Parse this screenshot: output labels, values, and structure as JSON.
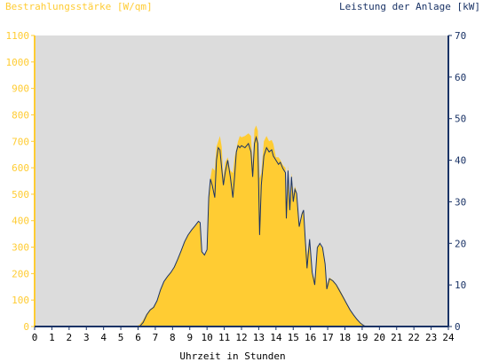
{
  "chart_data": {
    "type": "area",
    "left_axis_title": "Bestrahlungsstärke [W/qm]",
    "right_axis_title": "Leistung der Anlage [kW]",
    "xlabel": "Uhrzeit in Stunden",
    "xlim": [
      0,
      24
    ],
    "ylim_left": [
      0,
      1100
    ],
    "ylim_right": [
      0,
      70
    ],
    "x_ticks": [
      "0",
      "1",
      "2",
      "3",
      "4",
      "5",
      "6",
      "7",
      "8",
      "9",
      "10",
      "11",
      "12",
      "13",
      "14",
      "15",
      "16",
      "17",
      "18",
      "19",
      "20",
      "21",
      "22",
      "23",
      "24"
    ],
    "y_ticks_left": [
      "0",
      "100",
      "200",
      "300",
      "400",
      "500",
      "600",
      "700",
      "800",
      "900",
      "1000",
      "1100"
    ],
    "y_ticks_right": [
      "0",
      "10",
      "20",
      "30",
      "40",
      "50",
      "60",
      "70"
    ],
    "grid": false,
    "colors": {
      "irradiance_fill": "#ffcc33",
      "power_line": "#1a3366",
      "left_axis": "#ffcc33",
      "right_axis": "#1a3366",
      "plot_bg": "#dcdcdc"
    },
    "series": [
      {
        "axis": "left",
        "style": "filled-area",
        "points": [
          [
            0,
            0
          ],
          [
            5.9,
            0
          ],
          [
            6.1,
            8
          ],
          [
            6.3,
            25
          ],
          [
            6.5,
            48
          ],
          [
            6.7,
            65
          ],
          [
            6.9,
            75
          ],
          [
            7.1,
            100
          ],
          [
            7.3,
            140
          ],
          [
            7.5,
            170
          ],
          [
            7.7,
            190
          ],
          [
            7.9,
            205
          ],
          [
            8.1,
            225
          ],
          [
            8.3,
            255
          ],
          [
            8.5,
            285
          ],
          [
            8.7,
            320
          ],
          [
            8.9,
            345
          ],
          [
            9.1,
            365
          ],
          [
            9.3,
            378
          ],
          [
            9.5,
            395
          ],
          [
            9.6,
            390
          ],
          [
            9.7,
            285
          ],
          [
            9.85,
            270
          ],
          [
            10.0,
            290
          ],
          [
            10.1,
            480
          ],
          [
            10.2,
            560
          ],
          [
            10.3,
            600
          ],
          [
            10.45,
            590
          ],
          [
            10.55,
            680
          ],
          [
            10.65,
            700
          ],
          [
            10.75,
            720
          ],
          [
            10.85,
            680
          ],
          [
            10.95,
            560
          ],
          [
            11.05,
            620
          ],
          [
            11.2,
            640
          ],
          [
            11.35,
            590
          ],
          [
            11.5,
            580
          ],
          [
            11.6,
            640
          ],
          [
            11.7,
            670
          ],
          [
            11.8,
            700
          ],
          [
            11.9,
            720
          ],
          [
            12.0,
            715
          ],
          [
            12.2,
            720
          ],
          [
            12.4,
            730
          ],
          [
            12.55,
            720
          ],
          [
            12.65,
            610
          ],
          [
            12.75,
            745
          ],
          [
            12.85,
            760
          ],
          [
            12.95,
            740
          ],
          [
            13.05,
            560
          ],
          [
            13.15,
            580
          ],
          [
            13.3,
            700
          ],
          [
            13.45,
            720
          ],
          [
            13.6,
            700
          ],
          [
            13.75,
            705
          ],
          [
            13.85,
            690
          ],
          [
            14.0,
            640
          ],
          [
            14.15,
            640
          ],
          [
            14.25,
            630
          ],
          [
            14.4,
            610
          ],
          [
            14.55,
            600
          ],
          [
            14.6,
            420
          ],
          [
            14.7,
            610
          ],
          [
            14.8,
            460
          ],
          [
            14.9,
            580
          ],
          [
            15.0,
            500
          ],
          [
            15.1,
            530
          ],
          [
            15.2,
            510
          ],
          [
            15.35,
            380
          ],
          [
            15.5,
            430
          ],
          [
            15.6,
            440
          ],
          [
            15.7,
            340
          ],
          [
            15.8,
            270
          ],
          [
            15.95,
            330
          ],
          [
            16.1,
            200
          ],
          [
            16.25,
            180
          ],
          [
            16.4,
            305
          ],
          [
            16.55,
            310
          ],
          [
            16.7,
            295
          ],
          [
            16.85,
            240
          ],
          [
            16.95,
            160
          ],
          [
            17.1,
            185
          ],
          [
            17.3,
            175
          ],
          [
            17.5,
            160
          ],
          [
            17.7,
            140
          ],
          [
            17.9,
            115
          ],
          [
            18.1,
            90
          ],
          [
            18.3,
            65
          ],
          [
            18.5,
            45
          ],
          [
            18.7,
            28
          ],
          [
            18.9,
            15
          ],
          [
            19.1,
            5
          ],
          [
            19.25,
            0
          ],
          [
            24,
            0
          ]
        ]
      },
      {
        "axis": "right",
        "style": "line",
        "points": [
          [
            0,
            0
          ],
          [
            6.1,
            0
          ],
          [
            6.3,
            1
          ],
          [
            6.5,
            2.8
          ],
          [
            6.7,
            4
          ],
          [
            6.9,
            4.6
          ],
          [
            7.1,
            6.2
          ],
          [
            7.3,
            8.8
          ],
          [
            7.5,
            10.8
          ],
          [
            7.7,
            12
          ],
          [
            7.9,
            13
          ],
          [
            8.1,
            14.3
          ],
          [
            8.3,
            16.2
          ],
          [
            8.5,
            18.2
          ],
          [
            8.7,
            20.4
          ],
          [
            8.9,
            22
          ],
          [
            9.1,
            23.2
          ],
          [
            9.3,
            24.2
          ],
          [
            9.5,
            25.3
          ],
          [
            9.6,
            25
          ],
          [
            9.7,
            18
          ],
          [
            9.85,
            17.2
          ],
          [
            10.0,
            18.5
          ],
          [
            10.1,
            31
          ],
          [
            10.2,
            35.5
          ],
          [
            10.3,
            34
          ],
          [
            10.45,
            31
          ],
          [
            10.55,
            40
          ],
          [
            10.65,
            43
          ],
          [
            10.75,
            42.5
          ],
          [
            10.85,
            38
          ],
          [
            10.95,
            34
          ],
          [
            11.05,
            37
          ],
          [
            11.2,
            40
          ],
          [
            11.35,
            36
          ],
          [
            11.5,
            31
          ],
          [
            11.6,
            36
          ],
          [
            11.7,
            42
          ],
          [
            11.8,
            43.5
          ],
          [
            11.9,
            43
          ],
          [
            12.0,
            43.5
          ],
          [
            12.2,
            43
          ],
          [
            12.4,
            44
          ],
          [
            12.55,
            42
          ],
          [
            12.65,
            36
          ],
          [
            12.75,
            44
          ],
          [
            12.85,
            45.5
          ],
          [
            12.95,
            44
          ],
          [
            13.05,
            22
          ],
          [
            13.15,
            34
          ],
          [
            13.3,
            41
          ],
          [
            13.45,
            43
          ],
          [
            13.6,
            42
          ],
          [
            13.75,
            42.5
          ],
          [
            13.85,
            41
          ],
          [
            14.0,
            40
          ],
          [
            14.15,
            39
          ],
          [
            14.25,
            39.5
          ],
          [
            14.4,
            38
          ],
          [
            14.55,
            37
          ],
          [
            14.6,
            26
          ],
          [
            14.7,
            37.5
          ],
          [
            14.8,
            28
          ],
          [
            14.9,
            36
          ],
          [
            15.0,
            30
          ],
          [
            15.1,
            33
          ],
          [
            15.2,
            32
          ],
          [
            15.35,
            24
          ],
          [
            15.5,
            27
          ],
          [
            15.6,
            28
          ],
          [
            15.7,
            21
          ],
          [
            15.8,
            14
          ],
          [
            15.95,
            21
          ],
          [
            16.1,
            13
          ],
          [
            16.25,
            10
          ],
          [
            16.4,
            19
          ],
          [
            16.55,
            20
          ],
          [
            16.7,
            19
          ],
          [
            16.85,
            15
          ],
          [
            16.95,
            9
          ],
          [
            17.1,
            11.5
          ],
          [
            17.3,
            11
          ],
          [
            17.5,
            10
          ],
          [
            17.7,
            8.5
          ],
          [
            17.9,
            7
          ],
          [
            18.1,
            5.5
          ],
          [
            18.3,
            4
          ],
          [
            18.5,
            2.8
          ],
          [
            18.7,
            1.7
          ],
          [
            18.9,
            0.8
          ],
          [
            19.1,
            0.2
          ],
          [
            19.25,
            0
          ],
          [
            24,
            0
          ]
        ]
      }
    ]
  }
}
